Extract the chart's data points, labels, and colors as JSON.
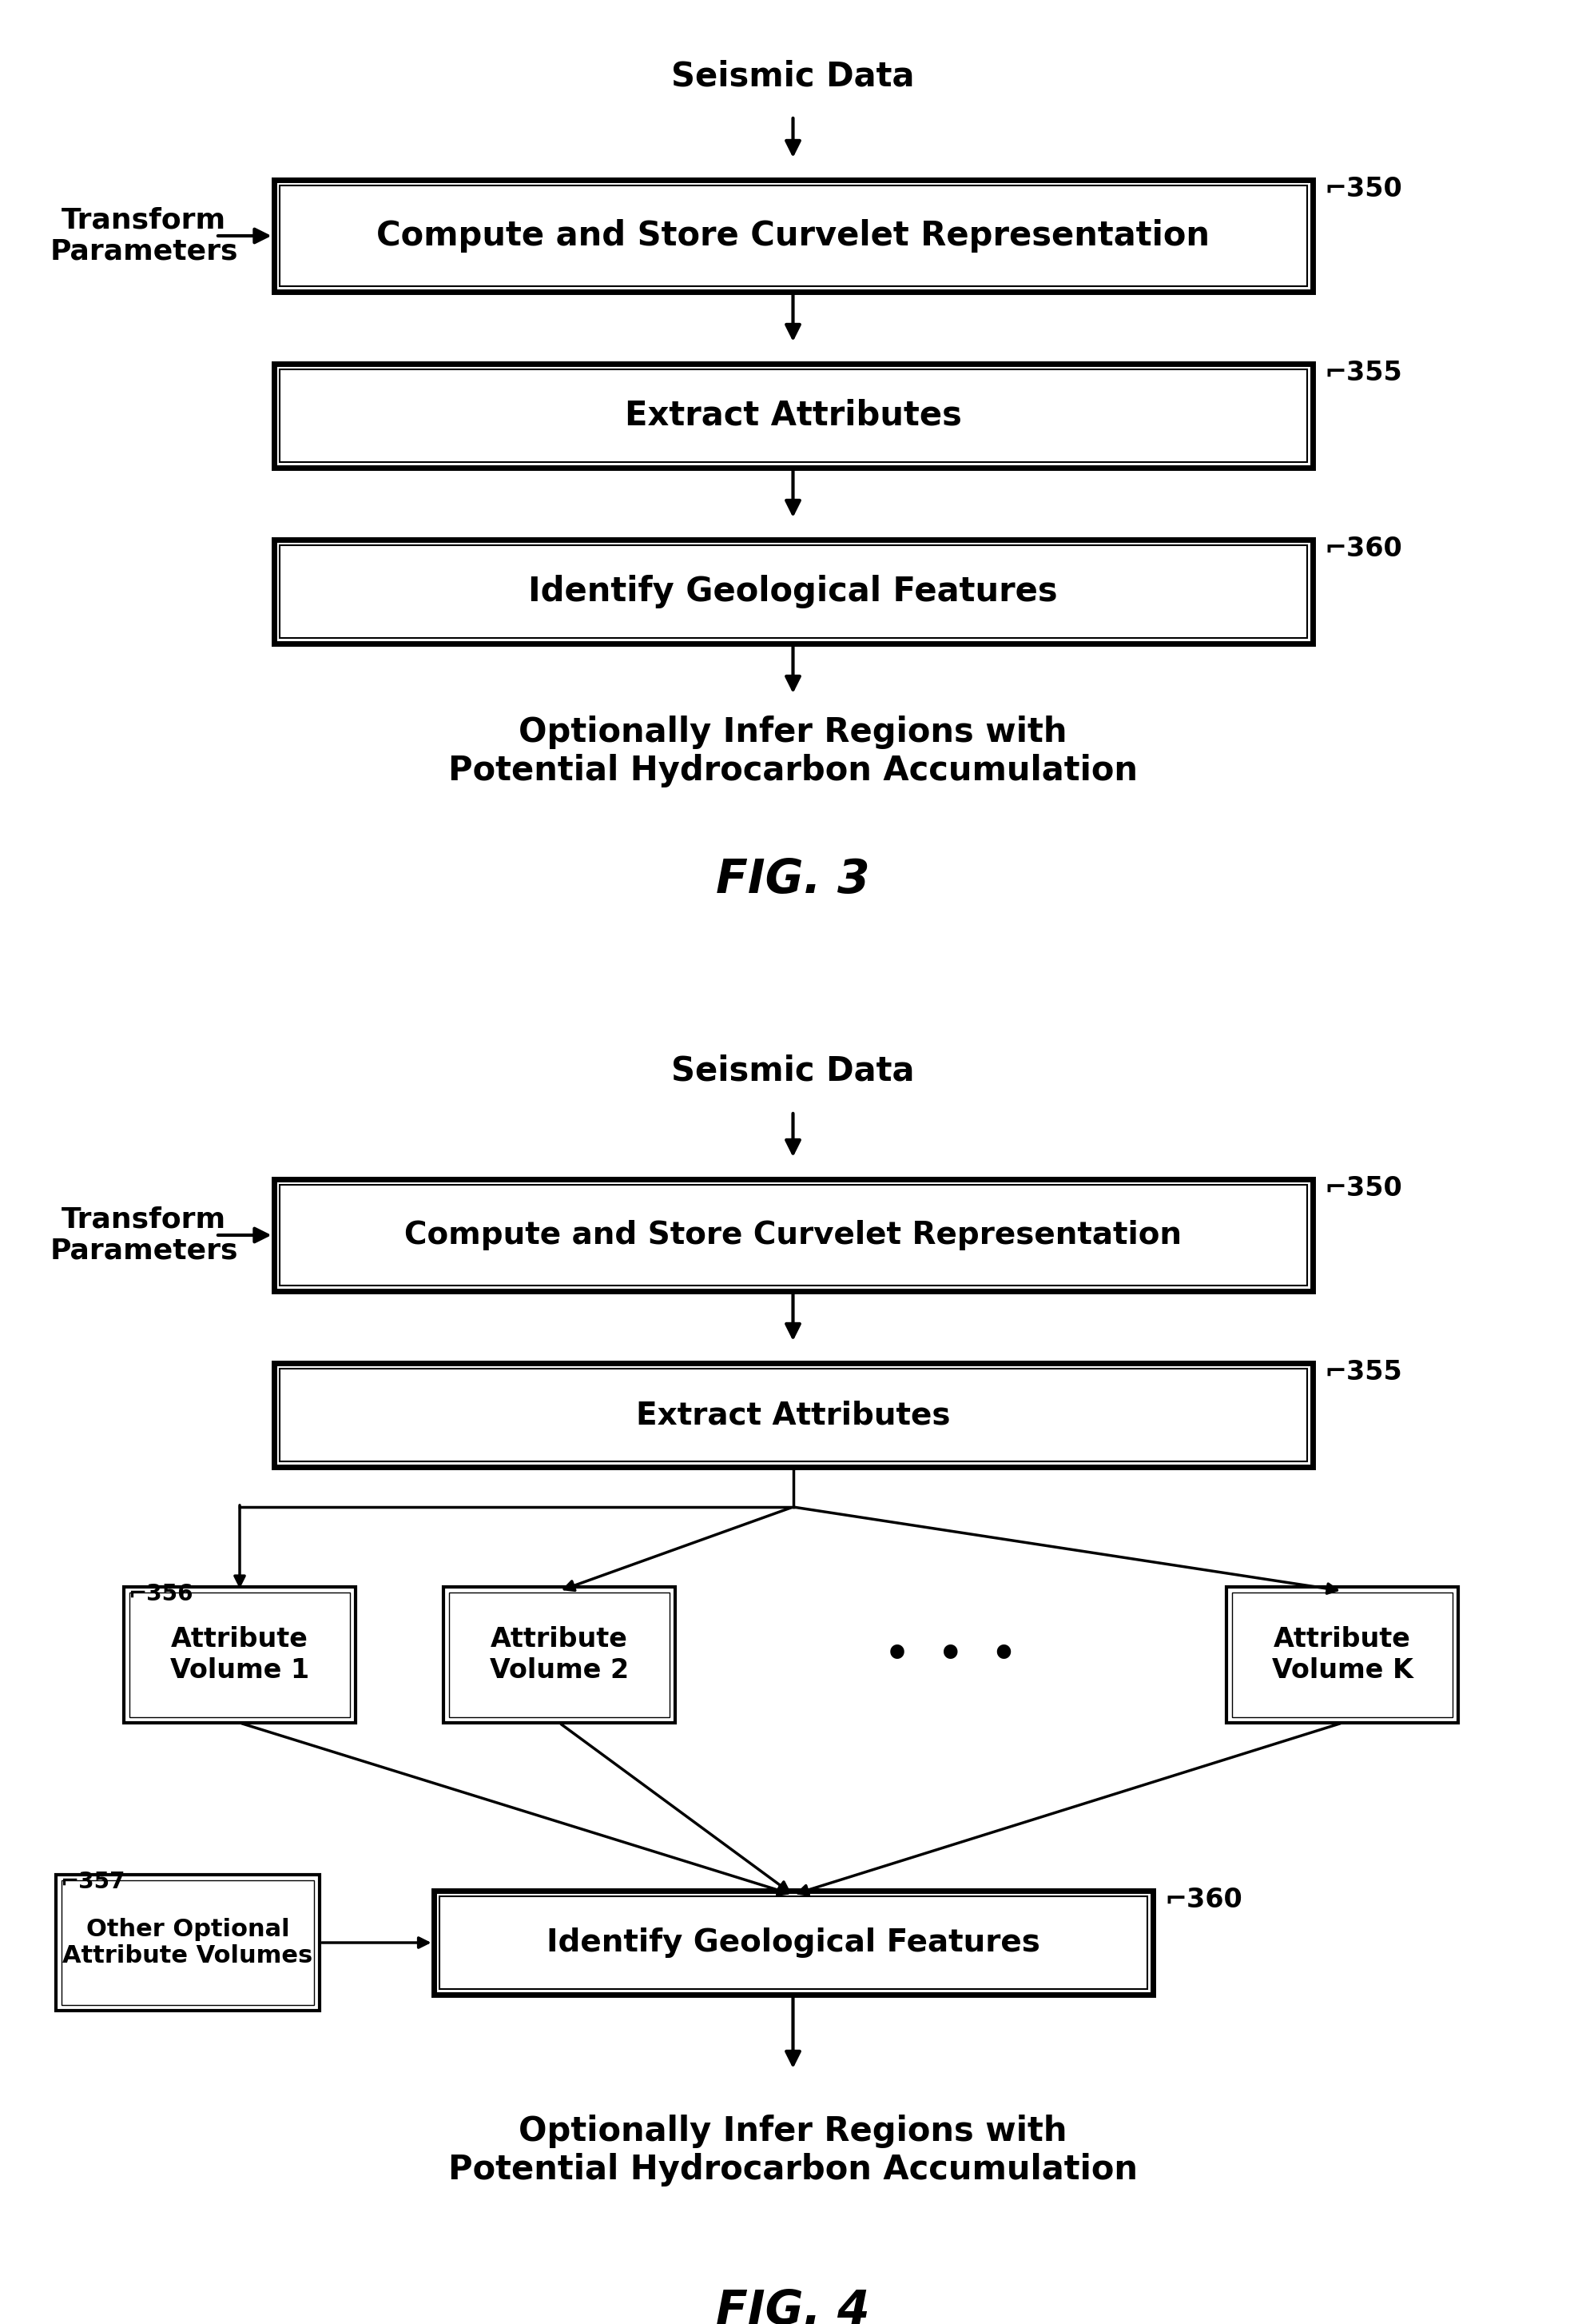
{
  "bg_color": "#ffffff",
  "line_color": "#000000",
  "text_color": "#000000",
  "fig3": {
    "title": "FIG. 3",
    "seismic_label": "Seismic Data",
    "transform_label": "Transform\nParameters",
    "box1_label": "Compute and Store Curvelet Representation",
    "box1_tag": "350",
    "box2_label": "Extract Attributes",
    "box2_tag": "355",
    "box3_label": "Identify Geological Features",
    "box3_tag": "360",
    "bottom_text": "Optionally Infer Regions with\nPotential Hydrocarbon Accumulation"
  },
  "fig4": {
    "title": "FIG. 4",
    "seismic_label": "Seismic Data",
    "transform_label": "Transform\nParameters",
    "box1_label": "Compute and Store Curvelet Representation",
    "box1_tag": "350",
    "box2_label": "Extract Attributes",
    "box2_tag": "355",
    "av1_label": "Attribute\nVolume 1",
    "av1_tag": "356",
    "av2_label": "Attribute\nVolume 2",
    "avk_label": "Attribute\nVolume K",
    "dots": "•  •  •",
    "other_label": "Other Optional\nAttribute Volumes",
    "other_tag": "357",
    "igf_label": "Identify Geological Features",
    "igf_tag": "360",
    "bottom_text": "Optionally Infer Regions with\nPotential Hydrocarbon Accumulation"
  }
}
